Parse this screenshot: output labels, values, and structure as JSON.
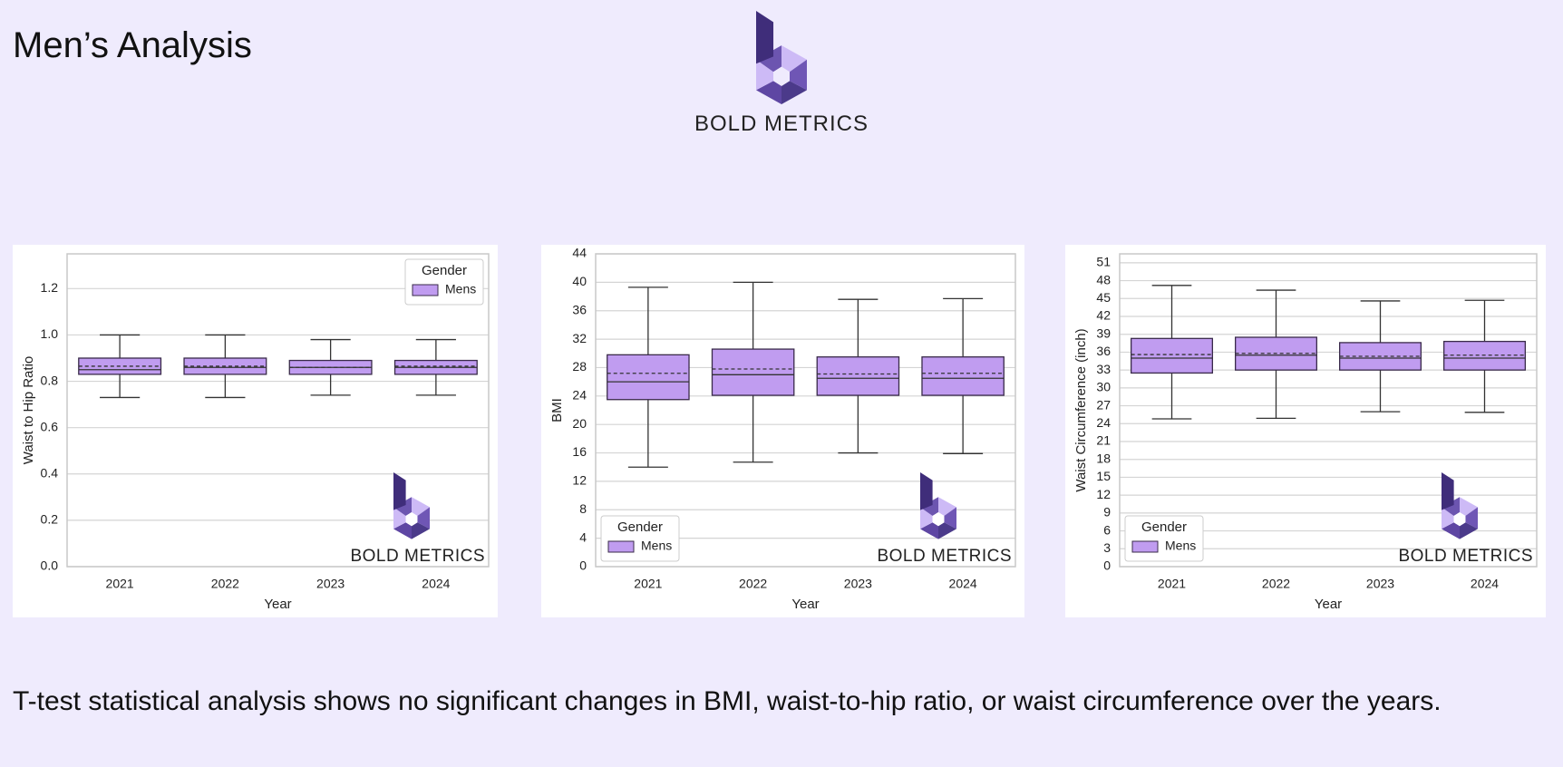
{
  "title": "Men’s Analysis",
  "logo_text": "BOLD METRICS",
  "caption": "T-test statistical analysis shows no significant changes in BMI, waist-to-hip ratio, or waist circumference over the years.",
  "chart_data": [
    {
      "type": "box",
      "x_label": "Year",
      "y_label": "Waist to Hip Ratio",
      "categories": [
        "2021",
        "2022",
        "2023",
        "2024"
      ],
      "ylim": [
        0,
        1.35
      ],
      "yticks": [
        {
          "value": 0,
          "label": "0.0"
        },
        0.2,
        0.4,
        0.6,
        0.8,
        {
          "value": 1,
          "label": "1.0"
        },
        1.2
      ],
      "grid": true,
      "legend": "upper right",
      "legend_title": "Gender",
      "watermark": "BOLD METRICS",
      "series": [
        {
          "name": "Mens",
          "color": "#c09cf0",
          "whislo": [
            0.73,
            0.73,
            0.74,
            0.74
          ],
          "q1": [
            0.83,
            0.83,
            0.83,
            0.83
          ],
          "median": [
            0.85,
            0.86,
            0.86,
            0.86
          ],
          "q3": [
            0.9,
            0.9,
            0.89,
            0.89
          ],
          "whishi": [
            1.0,
            1.0,
            0.98,
            0.98
          ],
          "mean": [
            0.865,
            0.865,
            0.86,
            0.865
          ]
        }
      ]
    },
    {
      "type": "box",
      "x_label": "Year",
      "y_label": "BMI",
      "categories": [
        "2021",
        "2022",
        "2023",
        "2024"
      ],
      "ylim": [
        0,
        44
      ],
      "yticks": [
        0,
        4,
        8,
        12,
        16,
        20,
        24,
        28,
        32,
        36,
        40,
        44
      ],
      "grid": true,
      "legend": "lower left",
      "legend_title": "Gender",
      "watermark": "BOLD METRICS",
      "series": [
        {
          "name": "Mens",
          "color": "#c09cf0",
          "whislo": [
            14,
            14.7,
            16,
            15.9
          ],
          "q1": [
            23.5,
            24.1,
            24.1,
            24.1
          ],
          "median": [
            26,
            27,
            26.5,
            26.5
          ],
          "q3": [
            29.8,
            30.6,
            29.5,
            29.5
          ],
          "whishi": [
            39.3,
            40,
            37.6,
            37.7
          ],
          "mean": [
            27.2,
            27.8,
            27.1,
            27.2
          ]
        }
      ]
    },
    {
      "type": "box",
      "x_label": "Year",
      "y_label": "Waist Circumference (inch)",
      "categories": [
        "2021",
        "2022",
        "2023",
        "2024"
      ],
      "ylim": [
        0,
        52.5
      ],
      "yticks": [
        0,
        3,
        6,
        9,
        12,
        15,
        18,
        21,
        24,
        27,
        30,
        33,
        36,
        39,
        42,
        45,
        48,
        51
      ],
      "grid": true,
      "legend": "lower left",
      "legend_title": "Gender",
      "watermark": "BOLD METRICS",
      "series": [
        {
          "name": "Mens",
          "color": "#c09cf0",
          "whislo": [
            24.8,
            24.9,
            26,
            25.9
          ],
          "q1": [
            32.5,
            33,
            33,
            33
          ],
          "median": [
            35,
            35.5,
            35,
            35
          ],
          "q3": [
            38.3,
            38.5,
            37.6,
            37.8
          ],
          "whishi": [
            47.2,
            46.4,
            44.6,
            44.7
          ],
          "mean": [
            35.6,
            35.8,
            35.3,
            35.5
          ]
        }
      ]
    }
  ]
}
